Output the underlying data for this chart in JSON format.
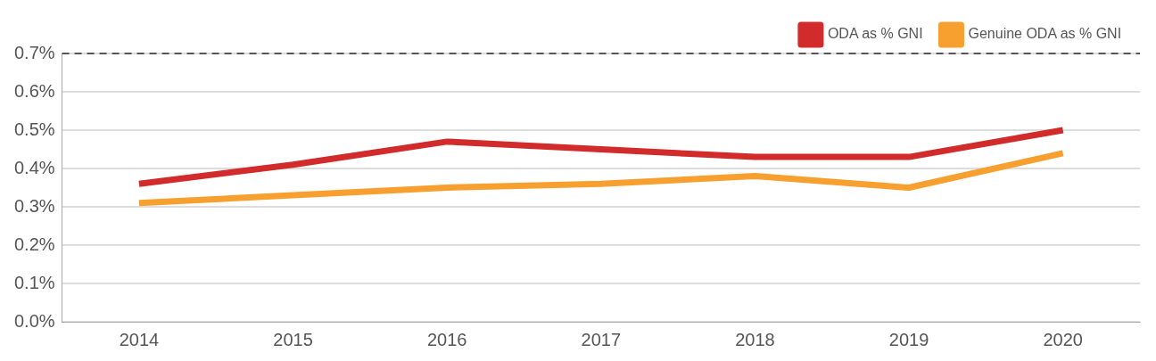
{
  "chart_data": {
    "type": "line",
    "categories": [
      "2014",
      "2015",
      "2016",
      "2017",
      "2018",
      "2019",
      "2020"
    ],
    "series": [
      {
        "name": "ODA as % GNI",
        "color": "#d22b2b",
        "values": [
          0.36,
          0.41,
          0.47,
          0.45,
          0.43,
          0.43,
          0.5
        ]
      },
      {
        "name": "Genuine ODA as % GNI",
        "color": "#f7a030",
        "values": [
          0.31,
          0.33,
          0.35,
          0.36,
          0.38,
          0.35,
          0.44
        ]
      }
    ],
    "ylim": [
      0,
      0.7
    ],
    "yticks": [
      {
        "value": 0,
        "label": "0.0%"
      },
      {
        "value": 0.1,
        "label": "0.1%"
      },
      {
        "value": 0.2,
        "label": "0.2%"
      },
      {
        "value": 0.3,
        "label": "0.3%"
      },
      {
        "value": 0.4,
        "label": "0.4%"
      },
      {
        "value": 0.5,
        "label": "0.5%"
      },
      {
        "value": 0.6,
        "label": "0.6%"
      },
      {
        "value": 0.7,
        "label": "0.7%"
      }
    ],
    "ref_lines": [
      {
        "axis": "y",
        "value": 0.7,
        "color": "#555555",
        "line_style": "dashed"
      }
    ],
    "grid": "y",
    "legend": "top right",
    "marker": "none",
    "line_style": "solid"
  }
}
